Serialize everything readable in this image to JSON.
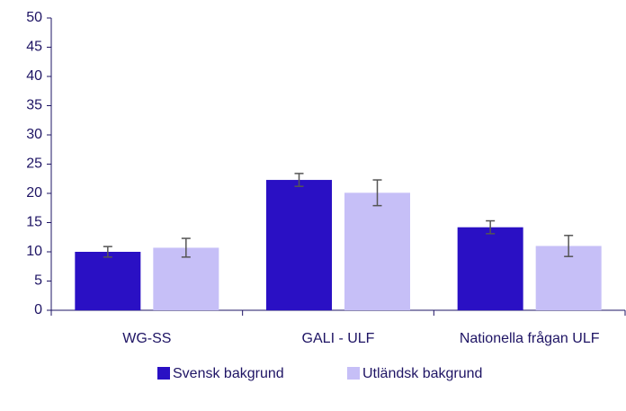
{
  "chart_data": {
    "type": "bar",
    "categories": [
      "WG-SS",
      "GALI - ULF",
      "Nationella frågan ULF"
    ],
    "series": [
      {
        "name": "Svensk bakgrund",
        "color": "#2a10c4",
        "values": [
          10,
          22.3,
          14.2
        ],
        "errors": [
          0.9,
          1.1,
          1.1
        ]
      },
      {
        "name": "Utländsk bakgrund",
        "color": "#c6bff7",
        "values": [
          10.7,
          20.1,
          11
        ],
        "errors": [
          1.6,
          2.2,
          1.8
        ]
      }
    ],
    "ylim": [
      0,
      50
    ],
    "yticks": [
      0,
      5,
      10,
      15,
      20,
      25,
      30,
      35,
      40,
      45,
      50
    ],
    "grid": false,
    "legend": "bottom",
    "error_color": "#555555"
  }
}
